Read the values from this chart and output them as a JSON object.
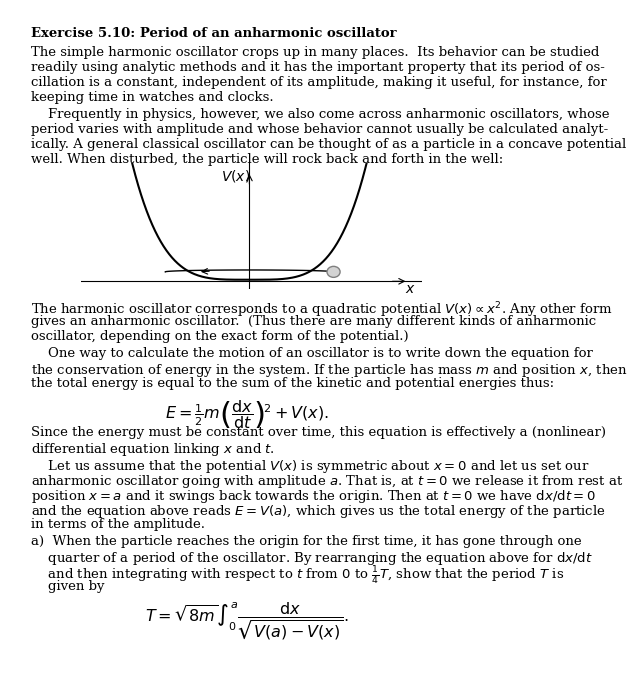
{
  "title": "Exercise 5.10: Period of an anharmonic oscillator",
  "para1": "The simple harmonic oscillator crops up in many places.  Its behavior can be studied\nreadily using analytic methods and it has the important property that its period of os-\ncillation is a constant, independent of its amplitude, making it useful, for instance, for\nkeeping time in watches and clocks.",
  "para2": "    Frequently in physics, however, we also come across anharmonic oscillators, whose\nperiod varies with amplitude and whose behavior cannot usually be calculated analyt-\nically. A general classical oscillator can be thought of as a particle in a concave potential\nwell. When disturbed, the particle will rock back and forth in the well:",
  "para3": "The harmonic oscillator corresponds to a quadratic potential $V(x) \\propto x^2$. Any other form\ngives an anharmonic oscillator.  (Thus there are many different kinds of anharmonic\noscillator, depending on the exact form of the potential.)",
  "para4": "    One way to calculate the motion of an oscillator is to write down the equation for\nthe conservation of energy in the system. If the particle has mass $m$ and position $x$, then\nthe total energy is equal to the sum of the kinetic and potential energies thus:",
  "eq1": "$E = \\frac{1}{2}m\\left(\\dfrac{\\mathrm{d}x}{\\mathrm{d}t}\\right)^2 + V(x).$",
  "para5": "Since the energy must be constant over time, this equation is effectively a (nonlinear)\ndifferential equation linking $x$ and $t$.",
  "para6": "    Let us assume that the potential $V(x)$ is symmetric about $x = 0$ and let us set our\nanharmonic oscillator going with amplitude $a$. That is, at $t = 0$ we release it from rest at\nposition $x = a$ and it swings back towards the origin. Then at $t = 0$ we have $\\mathrm{d}x/\\mathrm{d}t = 0$\nand the equation above reads $E = V(a)$, which gives us the total energy of the particle\nin terms of the amplitude.",
  "para7a": "a)  When the particle reaches the origin for the first time, it has gone through one\n    quarter of a period of the oscillator. By rearranging the equation above for $\\mathrm{d}x/\\mathrm{d}t$\n    and then integrating with respect to $t$ from $0$ to $\\frac{1}{4}T$, show that the period $T$ is\n    given by",
  "eq2": "$T = \\sqrt{8m}\\int_0^a \\dfrac{\\mathrm{d}x}{\\sqrt{V(a) - V(x)}}.$",
  "bg_color": "#ffffff",
  "text_color": "#000000",
  "font_size": 9.5
}
